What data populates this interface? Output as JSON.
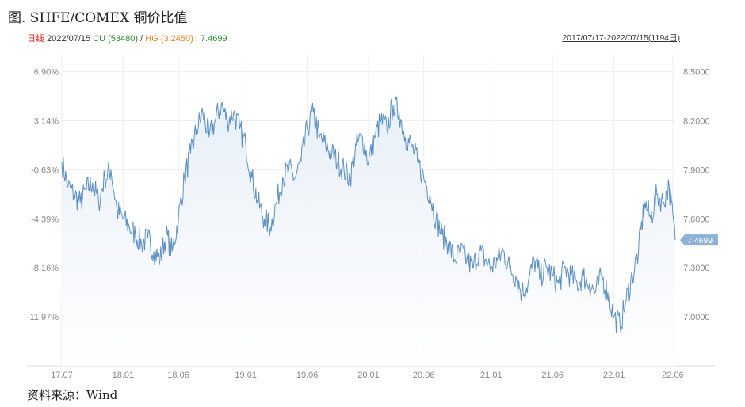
{
  "title": "图. SHFE/COMEX 铜价比值",
  "legend": {
    "prefix": "日线",
    "date": "2022/07/15",
    "cu_label": "CU",
    "cu_value": "(53480)",
    "slash": "/",
    "hg_label": "HG",
    "hg_value": "(3.2450)",
    "sep": ":",
    "ratio": "7.4699"
  },
  "range_text": "2017/07/17-2022/07/15(1194日)",
  "source": "资料来源：Wind",
  "colors": {
    "line": "#5b8fc2",
    "fill_top": "#e6eef7",
    "prefix": "#e02020",
    "cu": "#2e8b2e",
    "hg": "#e8811a",
    "marker": "#8fb1d6"
  },
  "chart_data": {
    "type": "area",
    "title": "",
    "left_ticks": [
      "6.90%",
      "3.14%",
      "-0.63%",
      "-4.39%",
      "-8.16%",
      "-11.97%"
    ],
    "right_ticks": [
      "8.5000",
      "8.2000",
      "7.9000",
      "7.6000",
      "7.3000",
      "7.0000"
    ],
    "right_tick_values": [
      8.5,
      8.2,
      7.9,
      7.6,
      7.3,
      7.0
    ],
    "x_tick_labels": [
      "17.07",
      "18.01",
      "18.06",
      "19.01",
      "19.06",
      "20.01",
      "20.06",
      "21.01",
      "21.06",
      "22.01",
      "22.06"
    ],
    "x_tick_positions": [
      0,
      0.1,
      0.19,
      0.3,
      0.4,
      0.5,
      0.59,
      0.7,
      0.8,
      0.9,
      0.996
    ],
    "ylim": [
      6.7,
      8.6
    ],
    "last_value": "7.4699",
    "x": [
      0,
      0.01,
      0.02,
      0.03,
      0.04,
      0.05,
      0.06,
      0.07,
      0.08,
      0.09,
      0.1,
      0.11,
      0.12,
      0.13,
      0.14,
      0.15,
      0.16,
      0.17,
      0.18,
      0.19,
      0.2,
      0.21,
      0.22,
      0.23,
      0.24,
      0.25,
      0.26,
      0.27,
      0.28,
      0.29,
      0.3,
      0.31,
      0.32,
      0.33,
      0.34,
      0.35,
      0.36,
      0.37,
      0.38,
      0.39,
      0.4,
      0.41,
      0.42,
      0.43,
      0.44,
      0.45,
      0.46,
      0.47,
      0.48,
      0.49,
      0.5,
      0.51,
      0.52,
      0.53,
      0.54,
      0.55,
      0.56,
      0.57,
      0.58,
      0.59,
      0.6,
      0.61,
      0.62,
      0.63,
      0.64,
      0.65,
      0.66,
      0.67,
      0.68,
      0.69,
      0.7,
      0.71,
      0.72,
      0.73,
      0.74,
      0.75,
      0.76,
      0.77,
      0.78,
      0.79,
      0.8,
      0.81,
      0.82,
      0.83,
      0.84,
      0.85,
      0.86,
      0.87,
      0.88,
      0.89,
      0.9,
      0.91,
      0.92,
      0.93,
      0.94,
      0.95,
      0.96,
      0.97,
      0.98,
      0.99,
      1.0
    ],
    "values": [
      7.95,
      7.8,
      7.75,
      7.7,
      7.78,
      7.82,
      7.7,
      7.85,
      7.9,
      7.65,
      7.6,
      7.55,
      7.5,
      7.45,
      7.48,
      7.4,
      7.35,
      7.5,
      7.4,
      7.6,
      7.85,
      8.0,
      8.15,
      8.25,
      8.1,
      8.2,
      8.3,
      8.2,
      8.25,
      8.15,
      8.05,
      7.85,
      7.7,
      7.6,
      7.55,
      7.7,
      7.85,
      7.9,
      7.85,
      7.95,
      8.15,
      8.25,
      8.1,
      8.05,
      8.0,
      7.95,
      7.9,
      7.85,
      8.05,
      8.1,
      7.95,
      8.1,
      8.2,
      8.15,
      8.3,
      8.25,
      8.1,
      8.05,
      7.95,
      7.85,
      7.75,
      7.6,
      7.5,
      7.45,
      7.35,
      7.4,
      7.35,
      7.3,
      7.4,
      7.35,
      7.3,
      7.35,
      7.4,
      7.3,
      7.25,
      7.15,
      7.2,
      7.35,
      7.25,
      7.3,
      7.25,
      7.2,
      7.3,
      7.25,
      7.2,
      7.25,
      7.2,
      7.15,
      7.25,
      7.15,
      7.0,
      6.95,
      7.1,
      7.25,
      7.4,
      7.7,
      7.6,
      7.75,
      7.7,
      7.8,
      7.47
    ]
  }
}
